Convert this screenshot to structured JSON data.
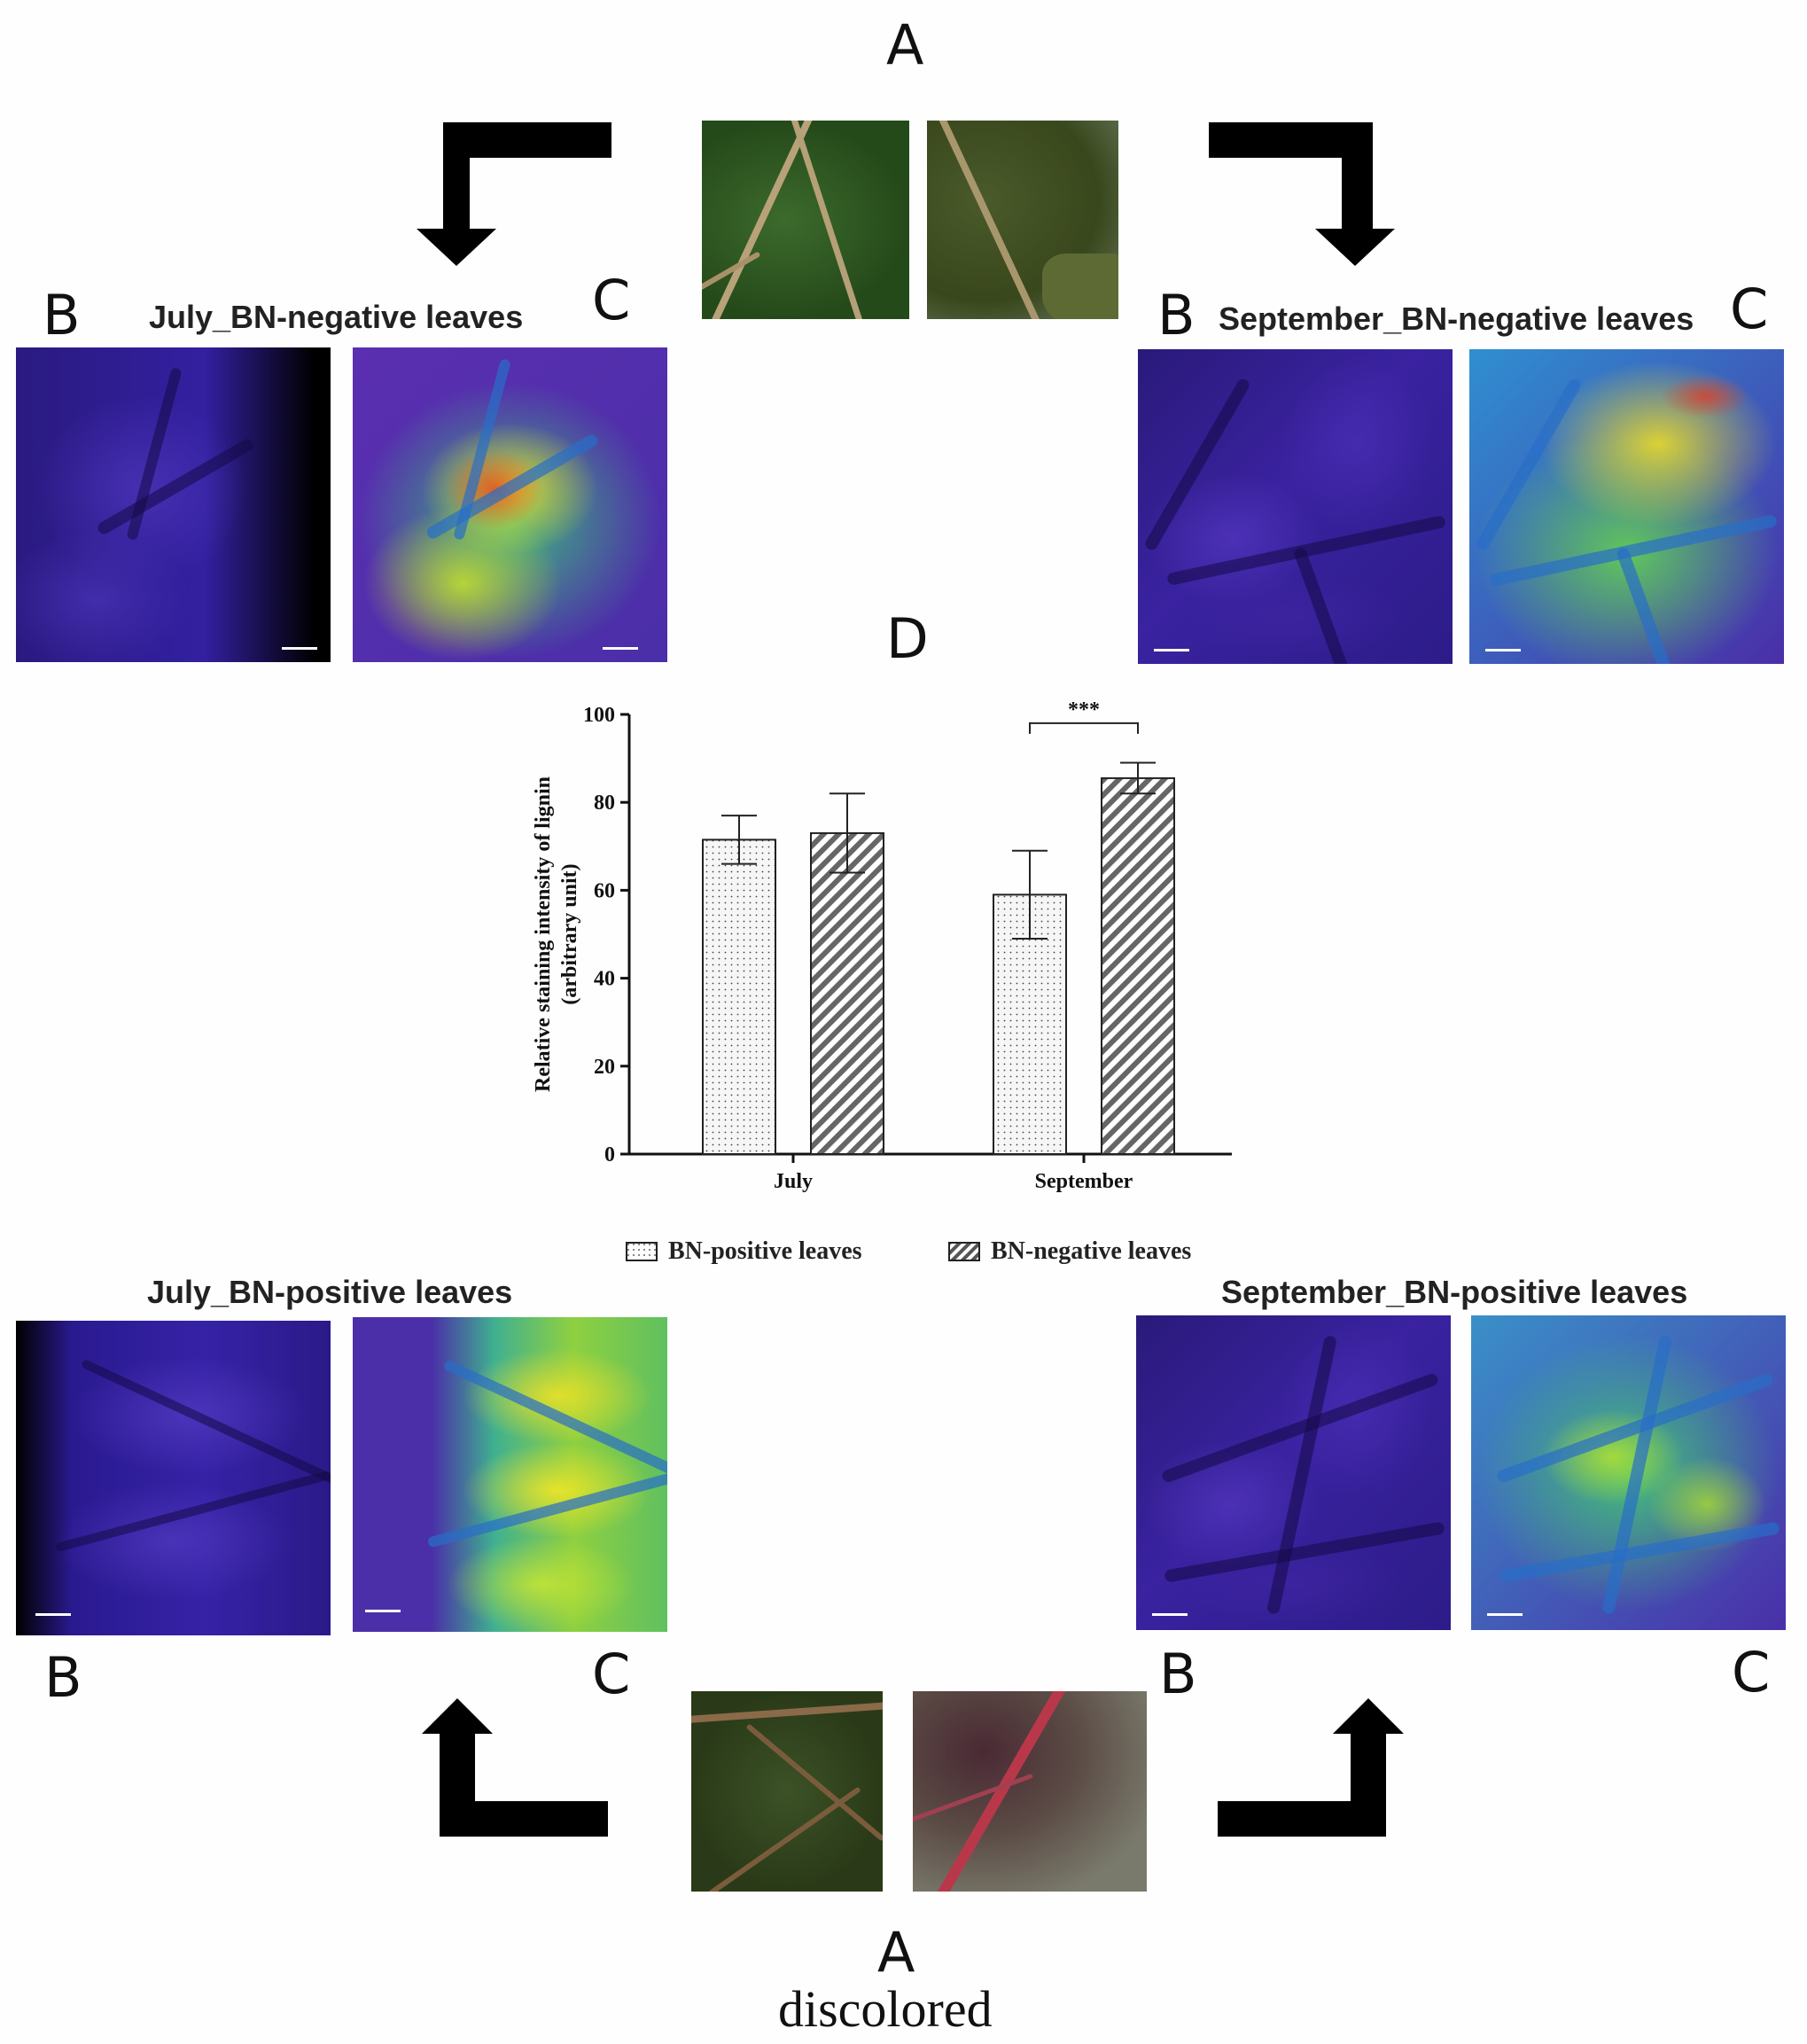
{
  "labels": {
    "A_top": "A",
    "A_bottom": "A",
    "D": "D",
    "B": "B",
    "C": "C",
    "bottom_caption": "discolored"
  },
  "panels": {
    "july_neg": "July_BN-negative leaves",
    "sept_neg": "September_BN-negative leaves",
    "july_pos": "July_BN-positive leaves",
    "sept_pos": "September_BN-positive leaves"
  },
  "colors": {
    "bar_dotted": "#f4f4f4",
    "bar_hatched": "#777777",
    "axis": "#111111",
    "arrow": "#000000"
  },
  "chart_data": {
    "type": "bar",
    "ylabel": "Relative staining intensity of lignin",
    "ylabel2": "(arbitrary unit)",
    "xlabel": "",
    "categories": [
      "July",
      "September"
    ],
    "ylim": [
      0,
      100
    ],
    "yticks": [
      0,
      20,
      40,
      60,
      80,
      100
    ],
    "series": [
      {
        "name": "BN-positive leaves",
        "values": [
          71.5,
          59
        ],
        "errors": [
          5.5,
          10
        ],
        "pattern": "dots"
      },
      {
        "name": "BN-negative leaves",
        "values": [
          73,
          85.5
        ],
        "errors": [
          9,
          3.5
        ],
        "pattern": "hatch"
      }
    ],
    "annotations": [
      {
        "text": "***",
        "category": "September"
      }
    ],
    "legend": "bottom",
    "grid": false
  }
}
